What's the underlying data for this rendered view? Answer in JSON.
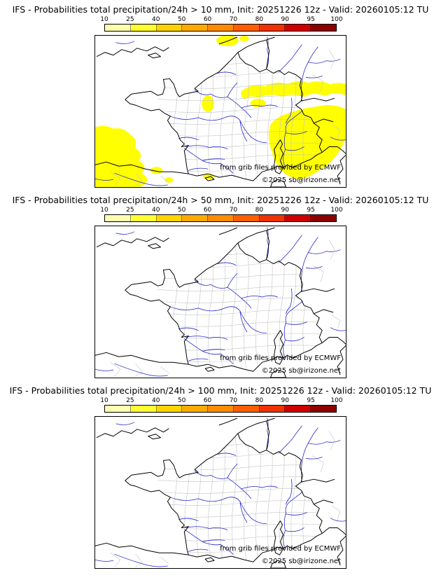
{
  "panels": [
    {
      "title": "IFS - Probabilities total precipitation/24h > 10 mm, Init: 20251226 12z - Valid: 20260105:12 TU",
      "threshold_mm": 10,
      "shows_probability_areas": true,
      "credit_source": "from grib files provided by ECMWF",
      "credit_copyright": "©2025 sb@irizone.net"
    },
    {
      "title": "IFS - Probabilities total precipitation/24h > 50 mm, Init: 20251226 12z - Valid: 20260105:12 TU",
      "threshold_mm": 50,
      "shows_probability_areas": false,
      "credit_source": "from grib files provided by ECMWF",
      "credit_copyright": "©2025 sb@irizone.net"
    },
    {
      "title": "IFS - Probabilities total precipitation/24h > 100 mm, Init: 20251226 12z - Valid: 20260105:12 TU",
      "threshold_mm": 100,
      "shows_probability_areas": false,
      "credit_source": "from grib files provided by ECMWF",
      "credit_copyright": "©2025 sb@irizone.net"
    }
  ],
  "colorbar": {
    "tick_labels": [
      "10",
      "25",
      "40",
      "50",
      "60",
      "70",
      "80",
      "90",
      "95",
      "100"
    ],
    "segment_colors": [
      "#ffffb0",
      "#ffff32",
      "#ffd400",
      "#ffaa00",
      "#ff8c00",
      "#ff5f00",
      "#f03200",
      "#d00000",
      "#8c0000"
    ]
  },
  "map": {
    "probability_fill": "#ffff00",
    "river_color": "#2626cc",
    "border_color": "#000000",
    "region_boundary_color": "#c4c4c4",
    "sea_land_background": "#ffffff"
  }
}
